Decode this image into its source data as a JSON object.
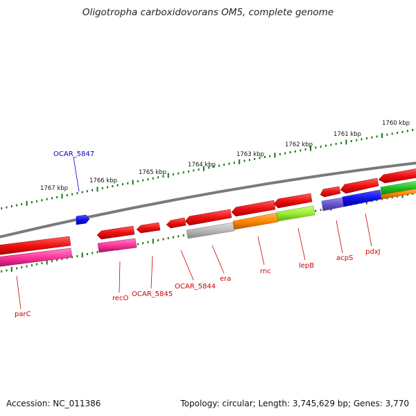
{
  "title": "Oligotropha carboxidovorans OM5, complete genome",
  "footer": {
    "accession": "Accession: NC_011386",
    "topology": "Topology: circular; Length: 3,745,629 bp; Genes: 3,770"
  },
  "scale_labels": [
    "1767 kbp",
    "1766 kbp",
    "1765 kbp",
    "1764 kbp",
    "1763 kbp",
    "1762 kbp",
    "1761 kbp",
    "1760 kbp"
  ],
  "gene_labels": [
    "OCAR_5847",
    "recO",
    "OCAR_5845",
    "OCAR_5844",
    "era",
    "rnc",
    "lepB",
    "acpS",
    "pdxJ",
    "parC"
  ],
  "colors": {
    "gene_red": "#ee1111",
    "gene_pink": "#ff3399",
    "gene_gray": "#b0b0b0",
    "gene_orange": "#ff8800",
    "gene_lime": "#99ee33",
    "gene_slate": "#6655cc",
    "gene_blue": "#1111ee",
    "gene_green": "#22bb22",
    "label_red": "#cc0000",
    "label_blue": "#0000cc",
    "backbone": "#777777",
    "tick_green": "#117711"
  }
}
